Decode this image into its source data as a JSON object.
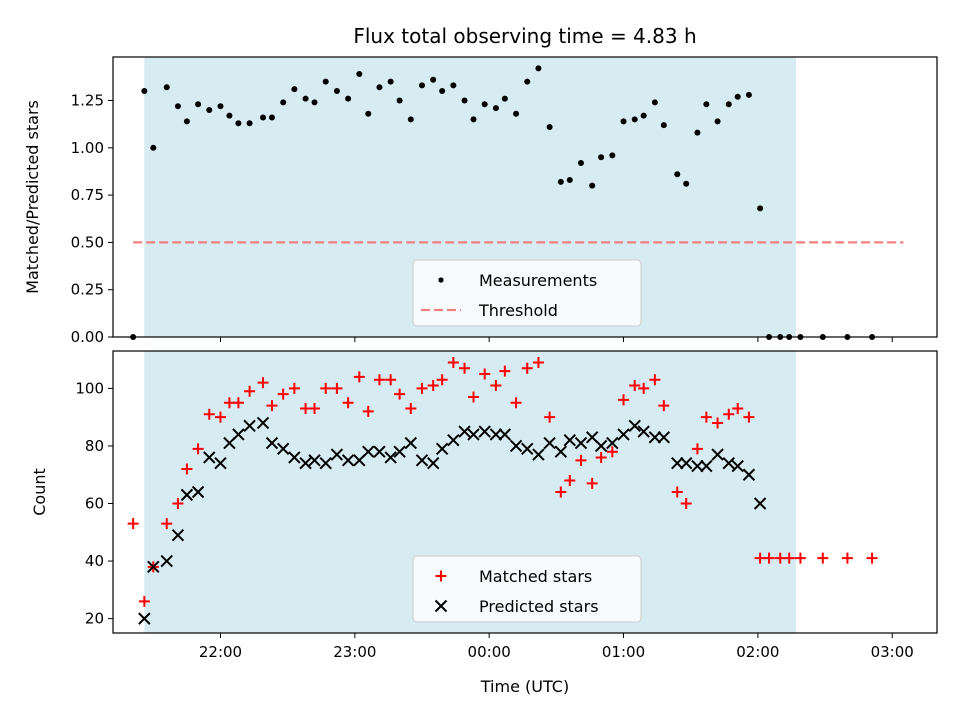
{
  "chart_data": [
    {
      "type": "scatter",
      "title": "Flux total observing time = 4.83 h",
      "ylabel": "Matched/Predicted stars",
      "xlabel": "",
      "xlim": [
        "21:12",
        "03:20"
      ],
      "ylim": [
        0,
        1.48
      ],
      "yticks": [
        "0.00",
        "0.25",
        "0.50",
        "0.75",
        "1.00",
        "1.25"
      ],
      "shaded_span": [
        "21:26",
        "02:17"
      ],
      "threshold": {
        "value": 0.5,
        "from": "21:21",
        "to": "03:05",
        "color": "#f08080"
      },
      "legend": {
        "position": "lower center",
        "entries": [
          "Measurements",
          "Threshold"
        ]
      },
      "series": [
        {
          "name": "Measurements",
          "marker": "dot",
          "color": "#000000",
          "points": [
            [
              "21:21",
              0.0
            ],
            [
              "21:26",
              1.3
            ],
            [
              "21:30",
              1.0
            ],
            [
              "21:36",
              1.32
            ],
            [
              "21:41",
              1.22
            ],
            [
              "21:45",
              1.14
            ],
            [
              "21:50",
              1.23
            ],
            [
              "21:55",
              1.2
            ],
            [
              "22:00",
              1.22
            ],
            [
              "22:04",
              1.17
            ],
            [
              "22:08",
              1.13
            ],
            [
              "22:13",
              1.13
            ],
            [
              "22:19",
              1.16
            ],
            [
              "22:23",
              1.16
            ],
            [
              "22:28",
              1.24
            ],
            [
              "22:33",
              1.31
            ],
            [
              "22:38",
              1.26
            ],
            [
              "22:42",
              1.24
            ],
            [
              "22:47",
              1.35
            ],
            [
              "22:52",
              1.3
            ],
            [
              "22:57",
              1.26
            ],
            [
              "23:02",
              1.39
            ],
            [
              "23:06",
              1.18
            ],
            [
              "23:11",
              1.32
            ],
            [
              "23:16",
              1.35
            ],
            [
              "23:20",
              1.25
            ],
            [
              "23:25",
              1.15
            ],
            [
              "23:30",
              1.33
            ],
            [
              "23:35",
              1.36
            ],
            [
              "23:39",
              1.3
            ],
            [
              "23:44",
              1.33
            ],
            [
              "23:49",
              1.25
            ],
            [
              "23:53",
              1.15
            ],
            [
              "23:58",
              1.23
            ],
            [
              "00:03",
              1.21
            ],
            [
              "00:07",
              1.26
            ],
            [
              "00:12",
              1.18
            ],
            [
              "00:17",
              1.35
            ],
            [
              "00:22",
              1.42
            ],
            [
              "00:27",
              1.11
            ],
            [
              "00:32",
              0.82
            ],
            [
              "00:36",
              0.83
            ],
            [
              "00:41",
              0.92
            ],
            [
              "00:46",
              0.8
            ],
            [
              "00:50",
              0.95
            ],
            [
              "00:55",
              0.96
            ],
            [
              "01:00",
              1.14
            ],
            [
              "01:05",
              1.15
            ],
            [
              "01:09",
              1.17
            ],
            [
              "01:14",
              1.24
            ],
            [
              "01:18",
              1.12
            ],
            [
              "01:24",
              0.86
            ],
            [
              "01:28",
              0.81
            ],
            [
              "01:33",
              1.08
            ],
            [
              "01:37",
              1.23
            ],
            [
              "01:42",
              1.14
            ],
            [
              "01:47",
              1.23
            ],
            [
              "01:51",
              1.27
            ],
            [
              "01:56",
              1.28
            ],
            [
              "02:01",
              0.68
            ],
            [
              "02:05",
              0.0
            ],
            [
              "02:10",
              0.0
            ],
            [
              "02:14",
              0.0
            ],
            [
              "02:19",
              0.0
            ],
            [
              "02:29",
              0.0
            ],
            [
              "02:40",
              0.0
            ],
            [
              "02:51",
              0.0
            ]
          ]
        }
      ]
    },
    {
      "type": "scatter",
      "title": "",
      "xlabel": "Time (UTC)",
      "ylabel": "Count",
      "xlim": [
        "21:12",
        "03:20"
      ],
      "ylim": [
        15,
        113
      ],
      "yticks": [
        "20",
        "40",
        "60",
        "80",
        "100"
      ],
      "xticks": [
        "22:00",
        "23:00",
        "00:00",
        "01:00",
        "02:00",
        "03:00"
      ],
      "shaded_span": [
        "21:26",
        "02:17"
      ],
      "legend": {
        "position": "lower center",
        "entries": [
          "Matched stars",
          "Predicted stars"
        ]
      },
      "series": [
        {
          "name": "Matched stars",
          "marker": "plus",
          "color": "#ff0000",
          "points": [
            [
              "21:21",
              53
            ],
            [
              "21:26",
              26
            ],
            [
              "21:30",
              38
            ],
            [
              "21:36",
              53
            ],
            [
              "21:41",
              60
            ],
            [
              "21:45",
              72
            ],
            [
              "21:50",
              79
            ],
            [
              "21:55",
              91
            ],
            [
              "22:00",
              90
            ],
            [
              "22:04",
              95
            ],
            [
              "22:08",
              95
            ],
            [
              "22:13",
              99
            ],
            [
              "22:19",
              102
            ],
            [
              "22:23",
              94
            ],
            [
              "22:28",
              98
            ],
            [
              "22:33",
              100
            ],
            [
              "22:38",
              93
            ],
            [
              "22:42",
              93
            ],
            [
              "22:47",
              100
            ],
            [
              "22:52",
              100
            ],
            [
              "22:57",
              95
            ],
            [
              "23:02",
              104
            ],
            [
              "23:06",
              92
            ],
            [
              "23:11",
              103
            ],
            [
              "23:16",
              103
            ],
            [
              "23:20",
              98
            ],
            [
              "23:25",
              93
            ],
            [
              "23:30",
              100
            ],
            [
              "23:35",
              101
            ],
            [
              "23:39",
              103
            ],
            [
              "23:44",
              109
            ],
            [
              "23:49",
              107
            ],
            [
              "23:53",
              97
            ],
            [
              "23:58",
              105
            ],
            [
              "00:03",
              101
            ],
            [
              "00:07",
              106
            ],
            [
              "00:12",
              95
            ],
            [
              "00:17",
              107
            ],
            [
              "00:22",
              109
            ],
            [
              "00:27",
              90
            ],
            [
              "00:32",
              64
            ],
            [
              "00:36",
              68
            ],
            [
              "00:41",
              75
            ],
            [
              "00:46",
              67
            ],
            [
              "00:50",
              76
            ],
            [
              "00:55",
              78
            ],
            [
              "01:00",
              96
            ],
            [
              "01:05",
              101
            ],
            [
              "01:09",
              100
            ],
            [
              "01:14",
              103
            ],
            [
              "01:18",
              94
            ],
            [
              "01:24",
              64
            ],
            [
              "01:28",
              60
            ],
            [
              "01:33",
              79
            ],
            [
              "01:37",
              90
            ],
            [
              "01:42",
              88
            ],
            [
              "01:47",
              91
            ],
            [
              "01:51",
              93
            ],
            [
              "01:56",
              90
            ],
            [
              "02:01",
              41
            ],
            [
              "02:05",
              41
            ],
            [
              "02:10",
              41
            ],
            [
              "02:14",
              41
            ],
            [
              "02:19",
              41
            ],
            [
              "02:29",
              41
            ],
            [
              "02:40",
              41
            ],
            [
              "02:51",
              41
            ]
          ]
        },
        {
          "name": "Predicted stars",
          "marker": "x",
          "color": "#000000",
          "points": [
            [
              "21:26",
              20
            ],
            [
              "21:30",
              38
            ],
            [
              "21:36",
              40
            ],
            [
              "21:41",
              49
            ],
            [
              "21:45",
              63
            ],
            [
              "21:50",
              64
            ],
            [
              "21:55",
              76
            ],
            [
              "22:00",
              74
            ],
            [
              "22:04",
              81
            ],
            [
              "22:08",
              84
            ],
            [
              "22:13",
              87
            ],
            [
              "22:19",
              88
            ],
            [
              "22:23",
              81
            ],
            [
              "22:28",
              79
            ],
            [
              "22:33",
              76
            ],
            [
              "22:38",
              74
            ],
            [
              "22:42",
              75
            ],
            [
              "22:47",
              74
            ],
            [
              "22:52",
              77
            ],
            [
              "22:57",
              75
            ],
            [
              "23:02",
              75
            ],
            [
              "23:06",
              78
            ],
            [
              "23:11",
              78
            ],
            [
              "23:16",
              76
            ],
            [
              "23:20",
              78
            ],
            [
              "23:25",
              81
            ],
            [
              "23:30",
              75
            ],
            [
              "23:35",
              74
            ],
            [
              "23:39",
              79
            ],
            [
              "23:44",
              82
            ],
            [
              "23:49",
              85
            ],
            [
              "23:53",
              84
            ],
            [
              "23:58",
              85
            ],
            [
              "00:03",
              84
            ],
            [
              "00:07",
              84
            ],
            [
              "00:12",
              80
            ],
            [
              "00:17",
              79
            ],
            [
              "00:22",
              77
            ],
            [
              "00:27",
              81
            ],
            [
              "00:32",
              78
            ],
            [
              "00:36",
              82
            ],
            [
              "00:41",
              81
            ],
            [
              "00:46",
              83
            ],
            [
              "00:50",
              80
            ],
            [
              "00:55",
              81
            ],
            [
              "01:00",
              84
            ],
            [
              "01:05",
              87
            ],
            [
              "01:09",
              85
            ],
            [
              "01:14",
              83
            ],
            [
              "01:18",
              83
            ],
            [
              "01:24",
              74
            ],
            [
              "01:28",
              74
            ],
            [
              "01:33",
              73
            ],
            [
              "01:37",
              73
            ],
            [
              "01:42",
              77
            ],
            [
              "01:47",
              74
            ],
            [
              "01:51",
              73
            ],
            [
              "01:56",
              70
            ],
            [
              "02:01",
              60
            ]
          ]
        }
      ]
    }
  ]
}
